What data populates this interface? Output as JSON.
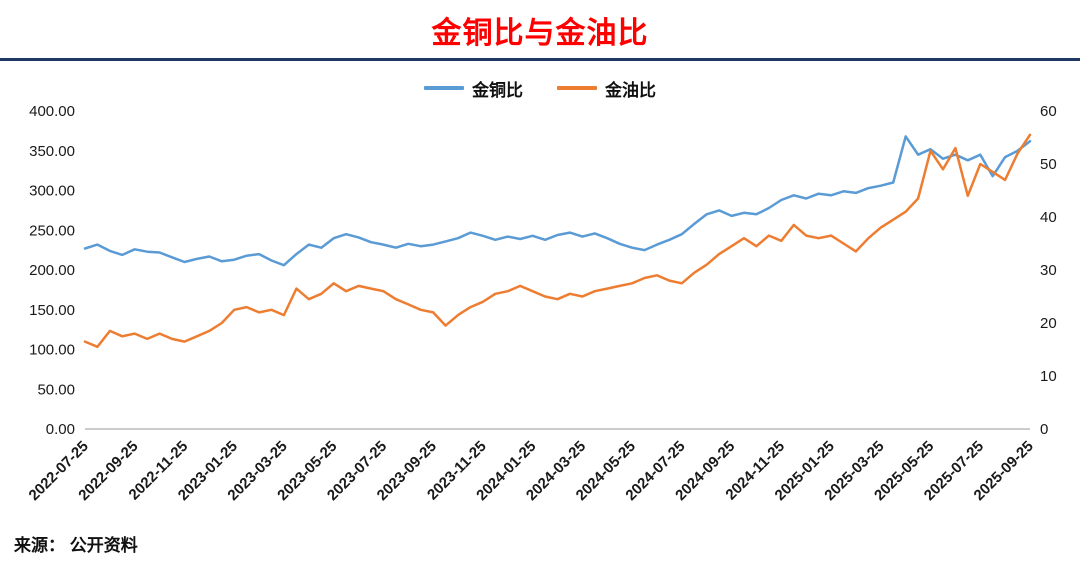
{
  "title": "金铜比与金油比",
  "source": "来源： 公开资料",
  "legend": [
    {
      "label": "金铜比",
      "color": "#5b9bd5"
    },
    {
      "label": "金油比",
      "color": "#ed7d31"
    }
  ],
  "chart_data": {
    "type": "line",
    "title": "金铜比与金油比",
    "x_tick_labels": [
      "2022-07-25",
      "2022-09-25",
      "2022-11-25",
      "2023-01-25",
      "2023-03-25",
      "2023-05-25",
      "2023-07-25",
      "2023-09-25",
      "2023-11-25",
      "2024-01-25",
      "2024-03-25",
      "2024-05-25",
      "2024-07-25",
      "2024-09-25",
      "2024-11-25",
      "2025-01-25",
      "2025-03-25",
      "2025-05-25",
      "2025-07-25",
      "2025-09-25"
    ],
    "left_axis": {
      "min": 0,
      "max": 400,
      "ticks": [
        "400.00",
        "350.00",
        "300.00",
        "250.00",
        "200.00",
        "150.00",
        "100.00",
        "50.00",
        "0.00"
      ]
    },
    "right_axis": {
      "min": 0,
      "max": 60,
      "ticks": [
        "60",
        "50",
        "40",
        "30",
        "20",
        "10",
        "0"
      ]
    },
    "grid": false,
    "legend_position": "top",
    "series": [
      {
        "name": "金铜比",
        "axis": "left",
        "color": "#5b9bd5",
        "values": [
          227,
          232,
          224,
          219,
          226,
          223,
          222,
          216,
          210,
          214,
          217,
          211,
          213,
          218,
          220,
          212,
          206,
          220,
          232,
          228,
          240,
          245,
          241,
          235,
          232,
          228,
          233,
          230,
          232,
          236,
          240,
          247,
          243,
          238,
          242,
          239,
          243,
          238,
          244,
          247,
          242,
          246,
          240,
          233,
          228,
          225,
          232,
          238,
          245,
          258,
          270,
          275,
          268,
          272,
          270,
          278,
          288,
          294,
          290,
          296,
          294,
          299,
          297,
          303,
          306,
          310,
          368,
          345,
          352,
          340,
          345,
          338,
          345,
          318,
          342,
          350,
          362
        ]
      },
      {
        "name": "金油比",
        "axis": "right",
        "color": "#ed7d31",
        "values": [
          16.5,
          15.5,
          18.5,
          17.5,
          18,
          17,
          18,
          17,
          16.5,
          17.5,
          18.5,
          20,
          22.5,
          23,
          22,
          22.5,
          21.5,
          26.5,
          24.5,
          25.5,
          27.5,
          26,
          27,
          26.5,
          26,
          24.5,
          23.5,
          22.5,
          22,
          19.5,
          21.5,
          23,
          24,
          25.5,
          26,
          27,
          26,
          25,
          24.5,
          25.5,
          25,
          26,
          26.5,
          27,
          27.5,
          28.5,
          29,
          28,
          27.5,
          29.5,
          31,
          33,
          34.5,
          36,
          34.5,
          36.5,
          35.5,
          38.5,
          36.5,
          36,
          36.5,
          35,
          33.5,
          36,
          38,
          39.5,
          41,
          43.5,
          52.5,
          49,
          53,
          44,
          50,
          48.5,
          47,
          52,
          55.5
        ]
      }
    ]
  }
}
